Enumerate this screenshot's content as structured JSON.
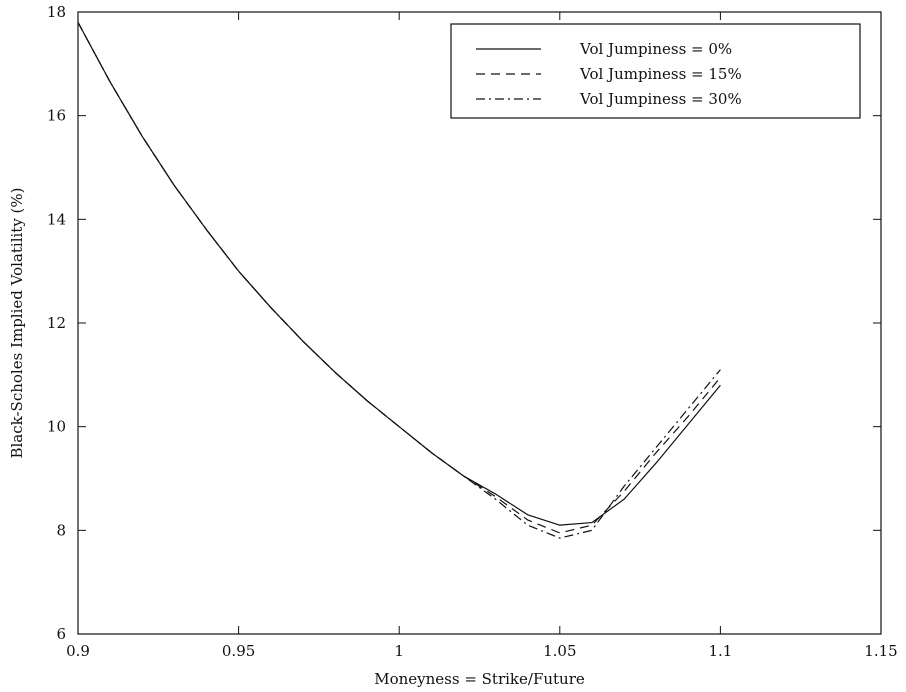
{
  "chart_data": {
    "type": "line",
    "title": "",
    "xlabel": "Moneyness = Strike/Future",
    "ylabel": "Black-Scholes Implied Volatility (%)",
    "xlim": [
      0.9,
      1.15
    ],
    "ylim": [
      6,
      18
    ],
    "xticks": [
      0.9,
      0.95,
      1,
      1.05,
      1.1,
      1.15
    ],
    "xtick_labels": [
      "0.9",
      "0.95",
      "1",
      "1.05",
      "1.1",
      "1.15"
    ],
    "yticks": [
      6,
      8,
      10,
      12,
      14,
      16,
      18
    ],
    "ytick_labels": [
      "6",
      "8",
      "10",
      "12",
      "14",
      "16",
      "18"
    ],
    "grid": false,
    "legend_position": "top-right",
    "series": [
      {
        "name": "Vol Jumpiness = 0%",
        "line_style": "solid",
        "x": [
          0.9,
          0.91,
          0.92,
          0.93,
          0.94,
          0.95,
          0.96,
          0.97,
          0.98,
          0.99,
          1.0,
          1.01,
          1.02,
          1.03,
          1.04,
          1.05,
          1.06,
          1.07,
          1.08,
          1.09,
          1.1
        ],
        "y": [
          17.8,
          16.65,
          15.6,
          14.65,
          13.8,
          13.0,
          12.3,
          11.65,
          11.05,
          10.5,
          10.0,
          9.5,
          9.05,
          8.7,
          8.3,
          8.1,
          8.15,
          8.6,
          9.3,
          10.05,
          10.8
        ]
      },
      {
        "name": "Vol Jumpiness = 15%",
        "line_style": "dashed",
        "x": [
          0.9,
          0.91,
          0.92,
          0.93,
          0.94,
          0.95,
          0.96,
          0.97,
          0.98,
          0.99,
          1.0,
          1.01,
          1.02,
          1.03,
          1.04,
          1.05,
          1.06,
          1.07,
          1.08,
          1.09,
          1.1
        ],
        "y": [
          17.8,
          16.65,
          15.6,
          14.65,
          13.8,
          13.0,
          12.3,
          11.65,
          11.05,
          10.5,
          10.0,
          9.5,
          9.05,
          8.65,
          8.2,
          7.95,
          8.1,
          8.75,
          9.5,
          10.2,
          10.95
        ]
      },
      {
        "name": "Vol Jumpiness = 30%",
        "line_style": "dash-dot",
        "x": [
          0.9,
          0.91,
          0.92,
          0.93,
          0.94,
          0.95,
          0.96,
          0.97,
          0.98,
          0.99,
          1.0,
          1.01,
          1.02,
          1.03,
          1.04,
          1.05,
          1.06,
          1.07,
          1.08,
          1.09,
          1.1
        ],
        "y": [
          17.8,
          16.65,
          15.6,
          14.65,
          13.8,
          13.0,
          12.3,
          11.65,
          11.05,
          10.5,
          10.0,
          9.5,
          9.05,
          8.6,
          8.1,
          7.85,
          8.0,
          8.85,
          9.6,
          10.35,
          11.1
        ]
      }
    ]
  }
}
